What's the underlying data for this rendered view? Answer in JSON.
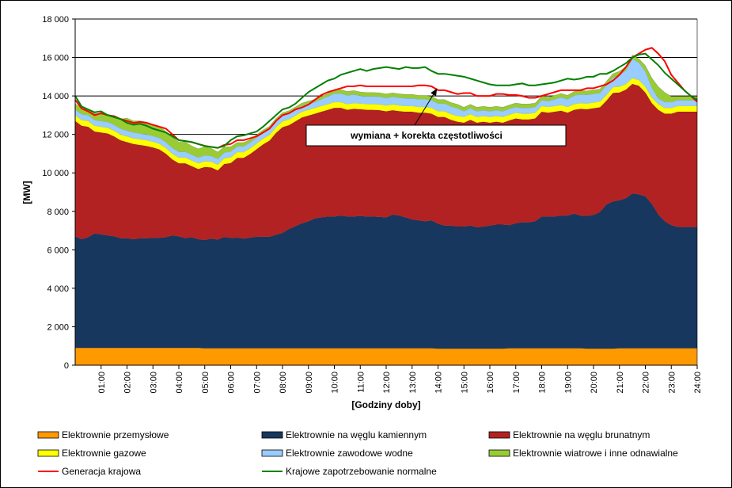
{
  "chart_data": {
    "type": "area",
    "title": "",
    "xlabel": "[Godziny doby]",
    "ylabel": "[MW]",
    "ylim": [
      0,
      18000
    ],
    "y_ticks": [
      0,
      2000,
      4000,
      6000,
      8000,
      10000,
      12000,
      14000,
      16000,
      18000
    ],
    "y_tick_labels": [
      "0",
      "2 000",
      "4 000",
      "6 000",
      "8 000",
      "10 000",
      "12 000",
      "14 000",
      "16 000",
      "18 000"
    ],
    "x": [
      0.0,
      0.25,
      0.5,
      0.75,
      1.0,
      1.25,
      1.5,
      1.75,
      2.0,
      2.25,
      2.5,
      2.75,
      3.0,
      3.25,
      3.5,
      3.75,
      4.0,
      4.25,
      4.5,
      4.75,
      5.0,
      5.25,
      5.5,
      5.75,
      6.0,
      6.25,
      6.5,
      6.75,
      7.0,
      7.25,
      7.5,
      7.75,
      8.0,
      8.25,
      8.5,
      8.75,
      9.0,
      9.25,
      9.5,
      9.75,
      10.0,
      10.25,
      10.5,
      10.75,
      11.0,
      11.25,
      11.5,
      11.75,
      12.0,
      12.25,
      12.5,
      12.75,
      13.0,
      13.25,
      13.5,
      13.75,
      14.0,
      14.25,
      14.5,
      14.75,
      15.0,
      15.25,
      15.5,
      15.75,
      16.0,
      16.25,
      16.5,
      16.75,
      17.0,
      17.25,
      17.5,
      17.75,
      18.0,
      18.25,
      18.5,
      18.75,
      19.0,
      19.25,
      19.5,
      19.75,
      20.0,
      20.25,
      20.5,
      20.75,
      21.0,
      21.25,
      21.5,
      21.75,
      22.0,
      22.25,
      22.5,
      22.75,
      23.0,
      23.25,
      23.5,
      23.75,
      24.0
    ],
    "x_tick_values": [
      1,
      2,
      3,
      4,
      5,
      6,
      7,
      8,
      9,
      10,
      11,
      12,
      13,
      14,
      15,
      16,
      17,
      18,
      19,
      20,
      21,
      22,
      23,
      24
    ],
    "x_tick_labels": [
      "01:00",
      "02:00",
      "03:00",
      "04:00",
      "05:00",
      "06:00",
      "07:00",
      "08:00",
      "09:00",
      "10:00",
      "11:00",
      "12:00",
      "13:00",
      "14:00",
      "15:00",
      "16:00",
      "17:00",
      "18:00",
      "19:00",
      "20:00",
      "21:00",
      "22:00",
      "23:00",
      "24:00"
    ],
    "grid": "horizontal",
    "stacked_series": [
      {
        "name": "Elektrownie przemysłowe",
        "color": "#ff9900",
        "values": [
          900,
          900,
          900,
          900,
          900,
          900,
          900,
          900,
          900,
          900,
          900,
          900,
          900,
          900,
          900,
          900,
          900,
          900,
          900,
          900,
          880,
          880,
          880,
          880,
          880,
          880,
          880,
          880,
          880,
          880,
          880,
          880,
          880,
          880,
          880,
          880,
          880,
          880,
          880,
          880,
          880,
          880,
          880,
          880,
          880,
          880,
          880,
          880,
          880,
          880,
          880,
          880,
          880,
          880,
          880,
          880,
          860,
          860,
          860,
          860,
          860,
          860,
          860,
          860,
          860,
          860,
          860,
          880,
          880,
          880,
          880,
          880,
          880,
          880,
          880,
          880,
          880,
          880,
          880,
          860,
          860,
          860,
          860,
          860,
          880,
          880,
          880,
          880,
          880,
          880,
          880,
          880,
          880,
          880,
          880,
          880,
          880
        ]
      },
      {
        "name": "Elektrownie na węglu kamiennym",
        "color": "#17375e",
        "values": [
          5800,
          5650,
          5750,
          5950,
          5900,
          5850,
          5800,
          5700,
          5700,
          5650,
          5700,
          5700,
          5720,
          5720,
          5750,
          5850,
          5800,
          5700,
          5750,
          5650,
          5630,
          5700,
          5650,
          5780,
          5730,
          5750,
          5700,
          5750,
          5800,
          5800,
          5800,
          5900,
          6000,
          6200,
          6350,
          6500,
          6600,
          6750,
          6800,
          6850,
          6850,
          6900,
          6850,
          6850,
          6880,
          6850,
          6850,
          6830,
          6800,
          6950,
          6900,
          6800,
          6700,
          6650,
          6600,
          6650,
          6500,
          6400,
          6400,
          6350,
          6350,
          6400,
          6300,
          6350,
          6400,
          6450,
          6450,
          6400,
          6500,
          6550,
          6550,
          6600,
          6850,
          6850,
          6850,
          6900,
          6900,
          7000,
          6900,
          6900,
          6950,
          7100,
          7500,
          7650,
          7700,
          7800,
          8050,
          8000,
          7900,
          7500,
          6950,
          6600,
          6400,
          6300,
          6300,
          6300,
          6300
        ]
      },
      {
        "name": "Elektrownie na węglu brunatnym",
        "color": "#b22222",
        "values": [
          6000,
          5900,
          5750,
          5300,
          5300,
          5300,
          5200,
          5100,
          5000,
          4950,
          4850,
          4800,
          4700,
          4600,
          4350,
          3950,
          3800,
          3900,
          3700,
          3650,
          3800,
          3700,
          3600,
          3800,
          3900,
          4150,
          4200,
          4350,
          4550,
          4800,
          5000,
          5300,
          5500,
          5400,
          5450,
          5500,
          5500,
          5450,
          5500,
          5550,
          5650,
          5600,
          5550,
          5600,
          5550,
          5550,
          5550,
          5550,
          5520,
          5430,
          5430,
          5500,
          5600,
          5600,
          5650,
          5550,
          5550,
          5650,
          5500,
          5450,
          5400,
          5500,
          5450,
          5450,
          5350,
          5350,
          5300,
          5450,
          5450,
          5350,
          5350,
          5350,
          5450,
          5400,
          5450,
          5450,
          5350,
          5400,
          5550,
          5550,
          5550,
          5450,
          5400,
          5650,
          5600,
          5650,
          5700,
          5650,
          5400,
          5250,
          5450,
          5600,
          5800,
          6000,
          6000,
          6000,
          6000
        ]
      },
      {
        "name": "Elektrownie gazowe",
        "color": "#ffff00",
        "values": [
          300,
          300,
          300,
          300,
          300,
          300,
          300,
          300,
          300,
          300,
          300,
          300,
          300,
          300,
          300,
          300,
          300,
          300,
          300,
          300,
          300,
          300,
          300,
          300,
          300,
          300,
          300,
          300,
          300,
          300,
          300,
          300,
          300,
          300,
          300,
          300,
          300,
          300,
          300,
          300,
          300,
          300,
          300,
          300,
          300,
          300,
          300,
          300,
          300,
          300,
          300,
          300,
          300,
          300,
          300,
          300,
          300,
          300,
          300,
          300,
          300,
          300,
          300,
          300,
          300,
          300,
          300,
          300,
          300,
          300,
          300,
          300,
          300,
          300,
          300,
          300,
          300,
          300,
          300,
          300,
          300,
          300,
          300,
          300,
          300,
          300,
          300,
          300,
          300,
          300,
          300,
          300,
          300,
          300,
          300,
          300,
          300
        ]
      },
      {
        "name": "Elektrownie zawodowe wodne",
        "color": "#99ccff",
        "values": [
          300,
          300,
          300,
          300,
          300,
          300,
          300,
          300,
          300,
          300,
          300,
          300,
          300,
          300,
          300,
          300,
          300,
          300,
          300,
          300,
          300,
          300,
          300,
          300,
          300,
          300,
          300,
          300,
          300,
          300,
          300,
          300,
          300,
          300,
          300,
          300,
          300,
          300,
          350,
          400,
          450,
          450,
          450,
          450,
          400,
          400,
          400,
          400,
          400,
          400,
          400,
          400,
          400,
          400,
          400,
          400,
          400,
          400,
          400,
          400,
          300,
          300,
          300,
          300,
          300,
          300,
          300,
          300,
          300,
          300,
          300,
          300,
          300,
          300,
          350,
          400,
          400,
          450,
          450,
          450,
          450,
          450,
          500,
          500,
          600,
          700,
          1000,
          900,
          800,
          500,
          300,
          300,
          300,
          300,
          300,
          300,
          300
        ]
      },
      {
        "name": "Elektrownie wiatrowe i inne odnawialne",
        "color": "#99cc33",
        "values": [
          300,
          300,
          300,
          350,
          350,
          400,
          450,
          500,
          650,
          600,
          650,
          650,
          600,
          600,
          550,
          550,
          500,
          500,
          450,
          450,
          450,
          400,
          350,
          300,
          250,
          200,
          200,
          150,
          150,
          150,
          150,
          150,
          150,
          150,
          150,
          150,
          150,
          150,
          150,
          150,
          200,
          200,
          200,
          200,
          200,
          200,
          200,
          200,
          200,
          200,
          200,
          200,
          200,
          200,
          200,
          200,
          200,
          200,
          200,
          200,
          200,
          200,
          200,
          200,
          200,
          200,
          200,
          200,
          200,
          200,
          200,
          200,
          200,
          200,
          200,
          200,
          200,
          200,
          200,
          200,
          200,
          200,
          200,
          200,
          200,
          200,
          200,
          200,
          300,
          500,
          600,
          500,
          300,
          200,
          200,
          200,
          200
        ]
      }
    ],
    "line_series": [
      {
        "name": "Generacja krajowa",
        "color": "#ff0000",
        "values": [
          13800,
          13350,
          13200,
          13000,
          13100,
          13000,
          12950,
          12800,
          12700,
          12600,
          12650,
          12600,
          12500,
          12400,
          12300,
          12000,
          11700,
          11650,
          11600,
          11500,
          11400,
          11350,
          11300,
          11450,
          11500,
          11700,
          11700,
          11800,
          11900,
          12100,
          12300,
          12700,
          13000,
          13100,
          13300,
          13400,
          13550,
          13800,
          14050,
          14200,
          14300,
          14400,
          14500,
          14500,
          14550,
          14500,
          14500,
          14500,
          14500,
          14500,
          14500,
          14500,
          14500,
          14550,
          14550,
          14500,
          14300,
          14300,
          14200,
          14100,
          14150,
          14150,
          14000,
          14000,
          14000,
          14100,
          14100,
          14050,
          14050,
          14000,
          13900,
          13900,
          14000,
          14100,
          14200,
          14300,
          14300,
          14300,
          14300,
          14400,
          14400,
          14500,
          14600,
          14800,
          15100,
          15500,
          16000,
          16200,
          16400,
          16500,
          16200,
          15800,
          15100,
          14700,
          14300,
          14000,
          13700
        ]
      },
      {
        "name": "Krajowe zapotrzebowanie normalne",
        "color": "#008000",
        "values": [
          14000,
          13450,
          13300,
          13150,
          13200,
          13000,
          12900,
          12800,
          12600,
          12500,
          12550,
          12450,
          12300,
          12200,
          12100,
          11900,
          11700,
          11650,
          11600,
          11500,
          11400,
          11350,
          11300,
          11400,
          11700,
          11900,
          11950,
          12050,
          12150,
          12400,
          12700,
          13000,
          13300,
          13400,
          13600,
          13900,
          14200,
          14400,
          14600,
          14800,
          14900,
          15100,
          15200,
          15300,
          15400,
          15300,
          15400,
          15450,
          15500,
          15450,
          15400,
          15500,
          15450,
          15450,
          15500,
          15300,
          15150,
          15150,
          15100,
          15050,
          15000,
          14900,
          14800,
          14700,
          14600,
          14550,
          14550,
          14550,
          14600,
          14650,
          14550,
          14550,
          14600,
          14650,
          14700,
          14800,
          14900,
          14850,
          14900,
          15000,
          15000,
          15150,
          15150,
          15300,
          15500,
          15700,
          16000,
          16150,
          16200,
          15900,
          15600,
          15200,
          14900,
          14600,
          14300,
          14000,
          13800
        ]
      }
    ],
    "annotation": {
      "text": "wymiana + korekta częstotliwości",
      "target_x": 15.0,
      "target_y": 14800
    },
    "legend": {
      "position": "bottom"
    }
  }
}
